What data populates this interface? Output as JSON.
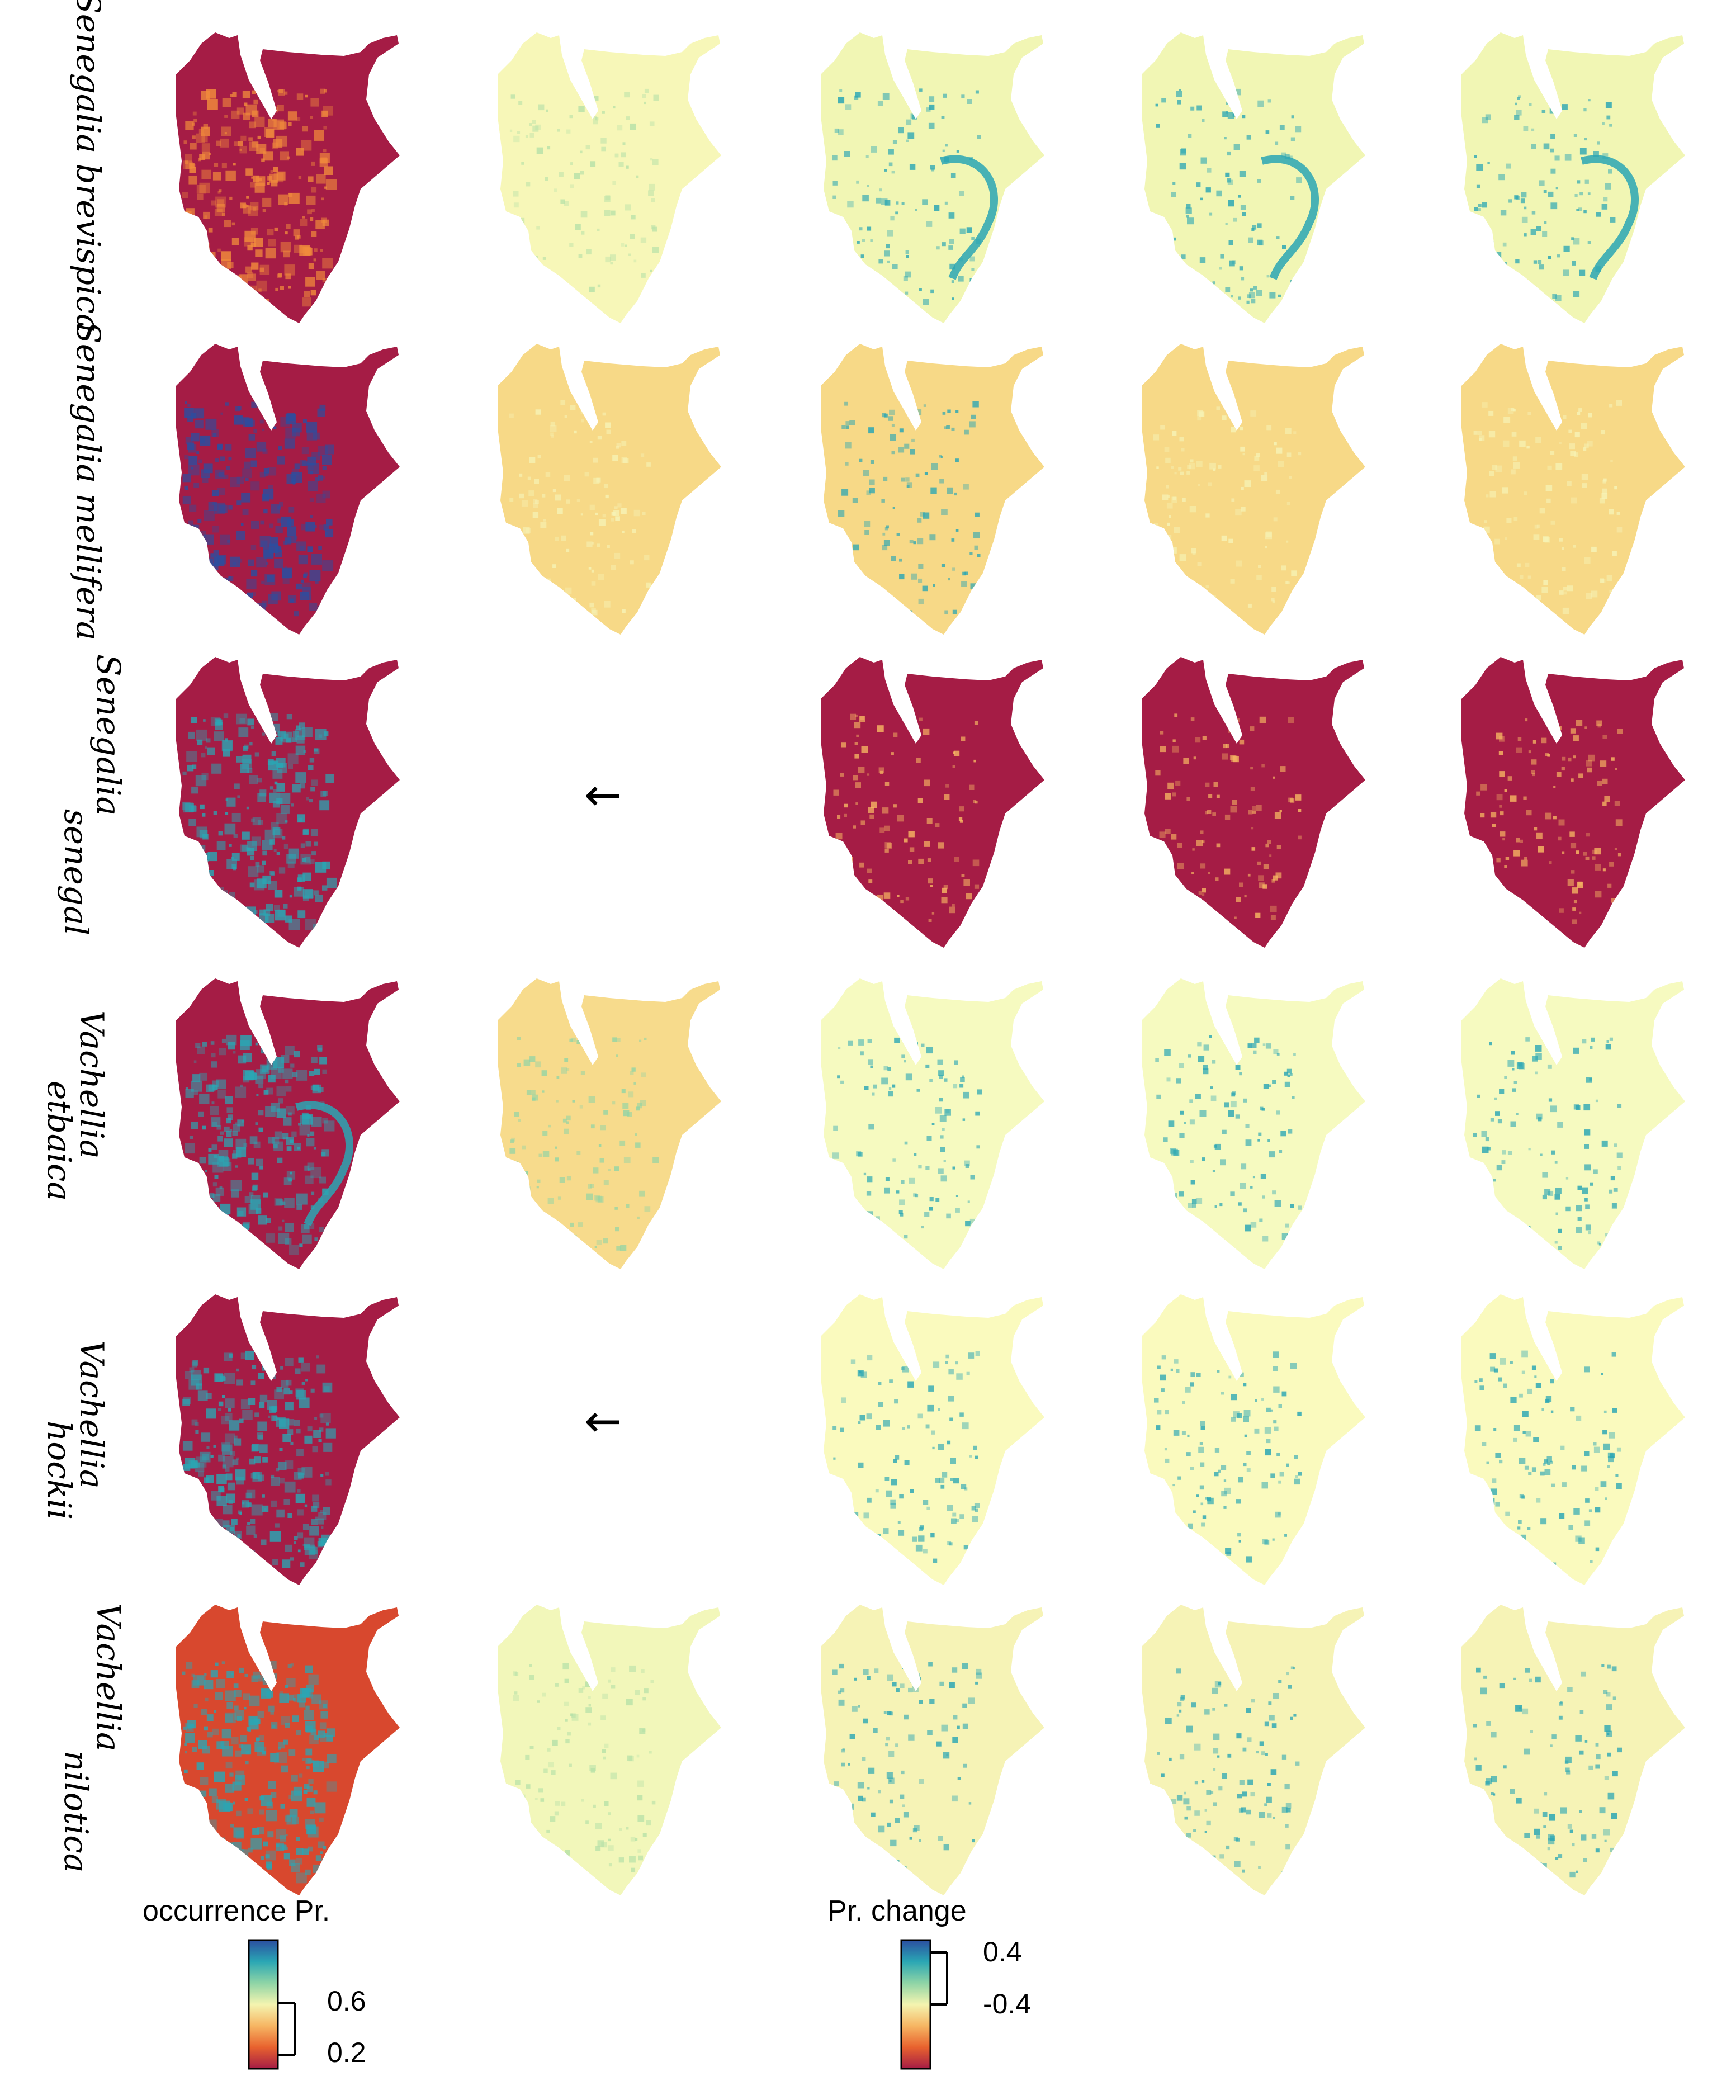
{
  "rows": [
    {
      "species_line1": "Senegalia brevispica",
      "species_line2": ""
    },
    {
      "species_line1": "Senegalia mellifera",
      "species_line2": ""
    },
    {
      "species_line1": "Senegalia",
      "species_line2": "senegal"
    },
    {
      "species_line1": "Vachellia",
      "species_line2": "etbaica"
    },
    {
      "species_line1": "Vachellia",
      "species_line2": "hockii"
    },
    {
      "species_line1": "Vachellia",
      "species_line2": "nilotica"
    }
  ],
  "missing_panel_glyph": "←",
  "legend_occurrence": {
    "title": "occurrence Pr.",
    "ticks": [
      "0.6",
      "0.2"
    ],
    "colors": [
      "#2b4ea0",
      "#2aa6b4",
      "#8ed4a6",
      "#f4f4b0",
      "#f6b663",
      "#e8622e",
      "#a51c45"
    ]
  },
  "legend_change": {
    "title": "Pr. change",
    "ticks": [
      "0.4",
      "-0.4"
    ],
    "colors": [
      "#2b4ea0",
      "#2aa6b4",
      "#8ed4a6",
      "#f4f4b0",
      "#f6b663",
      "#e8622e",
      "#a51c45"
    ]
  },
  "panel_palette": {
    "row1": [
      "#a51c45",
      "#f7f7b8",
      "#f1f6b4",
      "#f1f6b4",
      "#f1f6b4"
    ],
    "row2": [
      "#a51c45",
      "#f7d987",
      "#f7d987",
      "#f7d987",
      "#f7d987"
    ],
    "row3": [
      "#a51c45",
      "",
      "#a51c45",
      "#a51c45",
      "#a51c45"
    ],
    "row4": [
      "#a51c45",
      "#f7db8c",
      "#f6fac0",
      "#f6fac0",
      "#f6fac0"
    ],
    "row5": [
      "#a51c45",
      "",
      "#fafabe",
      "#fafabe",
      "#fafabe"
    ],
    "row6": [
      "#d8482e",
      "#f2f7ba",
      "#f6f3b6",
      "#f6f3b6",
      "#f6f3b6"
    ]
  },
  "panel_accent": {
    "row1": [
      "#f18b3c",
      "#b7e1a8",
      "#2aa6b4",
      "#2aa6b4",
      "#2aa6b4"
    ],
    "row2": [
      "#2b4ea0",
      "#f6f3b6",
      "#2aa6b4",
      "#f6f3b6",
      "#f6f3b6"
    ],
    "row3": [
      "#2aa6b4",
      "",
      "#f6b663",
      "#f6b663",
      "#f6b663"
    ],
    "row4": [
      "#2aa6b4",
      "#8ed4a6",
      "#2aa6b4",
      "#2aa6b4",
      "#2aa6b4"
    ],
    "row5": [
      "#2aa6b4",
      "",
      "#2aa6b4",
      "#2aa6b4",
      "#2aa6b4"
    ],
    "row6": [
      "#2aa6b4",
      "#b7e1a8",
      "#2aa6b4",
      "#2aa6b4",
      "#2aa6b4"
    ]
  }
}
